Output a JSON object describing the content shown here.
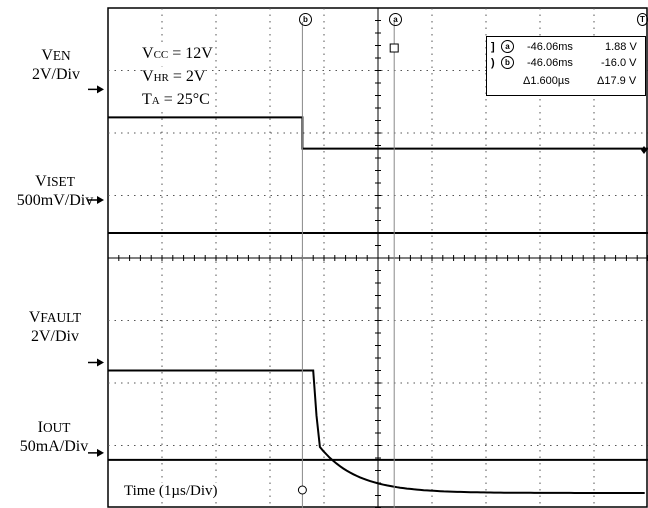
{
  "chart_data": {
    "type": "line",
    "title": "",
    "xlabel": "Time (1µs/Div)",
    "x_divisions": 10,
    "y_divisions": 8,
    "grid": true,
    "conditions": [
      "VCC = 12V",
      "VHR = 2V",
      "TA = 25°C"
    ],
    "channels": [
      {
        "name": "VEN",
        "scale": "2V/Div"
      },
      {
        "name": "VISET",
        "scale": "500mV/Div"
      },
      {
        "name": "VFAULT",
        "scale": "2V/Div"
      },
      {
        "name": "IOUT",
        "scale": "50mA/Div"
      }
    ],
    "cursor_readout": {
      "a_time": "-46.06ms",
      "a_value": "1.88 V",
      "b_time": "-46.06ms",
      "b_value": "-16.0 V",
      "delta_time": "Δ1.600µs",
      "delta_value": "Δ17.9 V"
    },
    "cursor_markers": [
      "b",
      "a",
      "T"
    ],
    "series": [
      {
        "name": "VEN",
        "x": [
          0,
          3.6,
          3.6,
          10
        ],
        "y": [
          0,
          0,
          -0.5,
          -0.5
        ],
        "unit": "div"
      },
      {
        "name": "VISET",
        "x": [
          0,
          10
        ],
        "y": [
          0,
          0
        ],
        "unit": "div"
      },
      {
        "name": "VFAULT",
        "x": [
          0,
          3.8,
          3.9,
          4.0,
          4.5,
          5.0,
          6.0,
          10
        ],
        "y": [
          0,
          0,
          -1.0,
          -1.5,
          -1.8,
          -1.92,
          -1.98,
          -2.0
        ],
        "unit": "div"
      },
      {
        "name": "IOUT",
        "x": [
          0,
          10
        ],
        "y": [
          0,
          0
        ],
        "unit": "div"
      }
    ]
  }
}
